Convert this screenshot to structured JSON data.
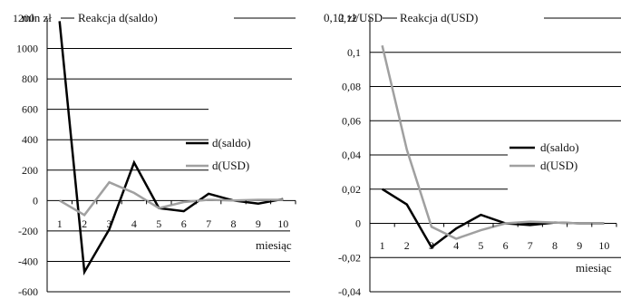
{
  "chart_data": [
    {
      "type": "line",
      "unit": "mln zł",
      "title": "Reakcja d(saldo)",
      "xlabel": "miesiąc",
      "categories": [
        "1",
        "2",
        "3",
        "4",
        "5",
        "6",
        "7",
        "8",
        "9",
        "10"
      ],
      "ylim": [
        -600,
        1200
      ],
      "yticks": [
        "1200",
        "1000",
        "800",
        "600",
        "400",
        "200",
        "0",
        "-200",
        "-400",
        "-600"
      ],
      "grid": true,
      "legend_position": "right",
      "series": [
        {
          "name": "d(saldo)",
          "color": "#000000",
          "values": [
            1180,
            -470,
            -190,
            250,
            -50,
            -70,
            45,
            0,
            -20,
            10
          ]
        },
        {
          "name": "d(USD)",
          "color": "#a0a0a0",
          "values": [
            0,
            -95,
            120,
            50,
            -50,
            -10,
            5,
            0,
            5,
            5
          ]
        }
      ]
    },
    {
      "type": "line",
      "unit": "0,12 zł/USD",
      "title": "Reakcja d(USD)",
      "xlabel": "miesiąc",
      "categories": [
        "1",
        "2",
        "3",
        "4",
        "5",
        "6",
        "7",
        "8",
        "9",
        "10"
      ],
      "ylim": [
        -0.04,
        0.12
      ],
      "yticks": [
        "0,12",
        "0,1",
        "0,08",
        "0,06",
        "0,04",
        "0,02",
        "0",
        "-0,02",
        "-0,04"
      ],
      "grid": true,
      "legend_position": "right",
      "series": [
        {
          "name": "d(saldo)",
          "color": "#000000",
          "values": [
            0.02,
            0.011,
            -0.014,
            -0.003,
            0.005,
            0.0,
            -0.001,
            0.0005,
            0.0,
            0.0
          ]
        },
        {
          "name": "d(USD)",
          "color": "#a0a0a0",
          "values": [
            0.104,
            0.043,
            -0.002,
            -0.009,
            -0.004,
            0.0,
            0.001,
            0.0005,
            0.0,
            0.0
          ]
        }
      ]
    }
  ]
}
